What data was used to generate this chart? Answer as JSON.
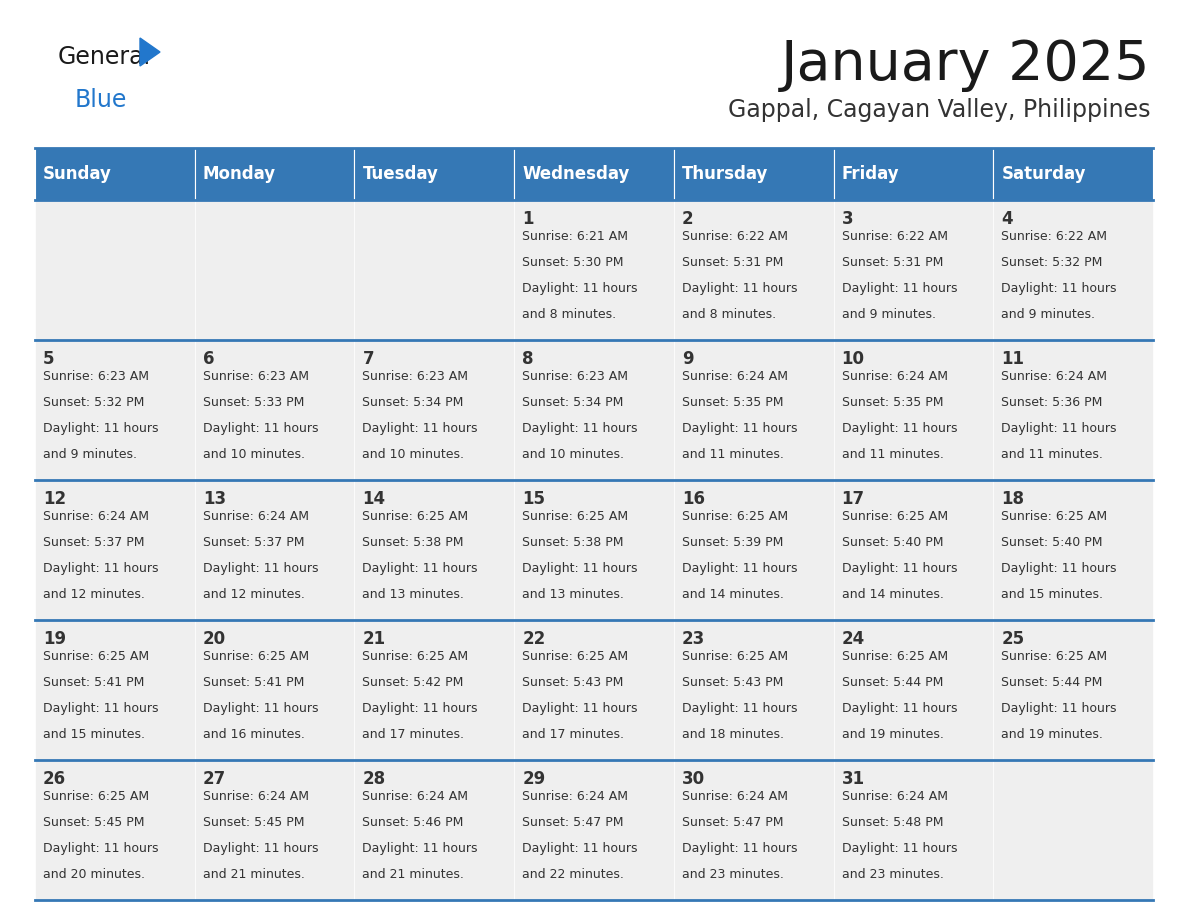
{
  "title": "January 2025",
  "subtitle": "Gappal, Cagayan Valley, Philippines",
  "days_of_week": [
    "Sunday",
    "Monday",
    "Tuesday",
    "Wednesday",
    "Thursday",
    "Friday",
    "Saturday"
  ],
  "header_bg": "#3578b5",
  "header_text": "#ffffff",
  "cell_bg_light": "#efefef",
  "divider_color": "#3578b5",
  "text_color": "#333333",
  "title_color": "#222222",
  "logo_general_color": "#222222",
  "logo_blue_color": "#2277cc",
  "logo_triangle_color": "#2277cc",
  "calendar_data": [
    [
      {
        "day": "",
        "sunrise": "",
        "sunset": "",
        "daylight": ""
      },
      {
        "day": "",
        "sunrise": "",
        "sunset": "",
        "daylight": ""
      },
      {
        "day": "",
        "sunrise": "",
        "sunset": "",
        "daylight": ""
      },
      {
        "day": "1",
        "sunrise": "6:21 AM",
        "sunset": "5:30 PM",
        "daylight": "11 hours and 8 minutes."
      },
      {
        "day": "2",
        "sunrise": "6:22 AM",
        "sunset": "5:31 PM",
        "daylight": "11 hours and 8 minutes."
      },
      {
        "day": "3",
        "sunrise": "6:22 AM",
        "sunset": "5:31 PM",
        "daylight": "11 hours and 9 minutes."
      },
      {
        "day": "4",
        "sunrise": "6:22 AM",
        "sunset": "5:32 PM",
        "daylight": "11 hours and 9 minutes."
      }
    ],
    [
      {
        "day": "5",
        "sunrise": "6:23 AM",
        "sunset": "5:32 PM",
        "daylight": "11 hours and 9 minutes."
      },
      {
        "day": "6",
        "sunrise": "6:23 AM",
        "sunset": "5:33 PM",
        "daylight": "11 hours and 10 minutes."
      },
      {
        "day": "7",
        "sunrise": "6:23 AM",
        "sunset": "5:34 PM",
        "daylight": "11 hours and 10 minutes."
      },
      {
        "day": "8",
        "sunrise": "6:23 AM",
        "sunset": "5:34 PM",
        "daylight": "11 hours and 10 minutes."
      },
      {
        "day": "9",
        "sunrise": "6:24 AM",
        "sunset": "5:35 PM",
        "daylight": "11 hours and 11 minutes."
      },
      {
        "day": "10",
        "sunrise": "6:24 AM",
        "sunset": "5:35 PM",
        "daylight": "11 hours and 11 minutes."
      },
      {
        "day": "11",
        "sunrise": "6:24 AM",
        "sunset": "5:36 PM",
        "daylight": "11 hours and 11 minutes."
      }
    ],
    [
      {
        "day": "12",
        "sunrise": "6:24 AM",
        "sunset": "5:37 PM",
        "daylight": "11 hours and 12 minutes."
      },
      {
        "day": "13",
        "sunrise": "6:24 AM",
        "sunset": "5:37 PM",
        "daylight": "11 hours and 12 minutes."
      },
      {
        "day": "14",
        "sunrise": "6:25 AM",
        "sunset": "5:38 PM",
        "daylight": "11 hours and 13 minutes."
      },
      {
        "day": "15",
        "sunrise": "6:25 AM",
        "sunset": "5:38 PM",
        "daylight": "11 hours and 13 minutes."
      },
      {
        "day": "16",
        "sunrise": "6:25 AM",
        "sunset": "5:39 PM",
        "daylight": "11 hours and 14 minutes."
      },
      {
        "day": "17",
        "sunrise": "6:25 AM",
        "sunset": "5:40 PM",
        "daylight": "11 hours and 14 minutes."
      },
      {
        "day": "18",
        "sunrise": "6:25 AM",
        "sunset": "5:40 PM",
        "daylight": "11 hours and 15 minutes."
      }
    ],
    [
      {
        "day": "19",
        "sunrise": "6:25 AM",
        "sunset": "5:41 PM",
        "daylight": "11 hours and 15 minutes."
      },
      {
        "day": "20",
        "sunrise": "6:25 AM",
        "sunset": "5:41 PM",
        "daylight": "11 hours and 16 minutes."
      },
      {
        "day": "21",
        "sunrise": "6:25 AM",
        "sunset": "5:42 PM",
        "daylight": "11 hours and 17 minutes."
      },
      {
        "day": "22",
        "sunrise": "6:25 AM",
        "sunset": "5:43 PM",
        "daylight": "11 hours and 17 minutes."
      },
      {
        "day": "23",
        "sunrise": "6:25 AM",
        "sunset": "5:43 PM",
        "daylight": "11 hours and 18 minutes."
      },
      {
        "day": "24",
        "sunrise": "6:25 AM",
        "sunset": "5:44 PM",
        "daylight": "11 hours and 19 minutes."
      },
      {
        "day": "25",
        "sunrise": "6:25 AM",
        "sunset": "5:44 PM",
        "daylight": "11 hours and 19 minutes."
      }
    ],
    [
      {
        "day": "26",
        "sunrise": "6:25 AM",
        "sunset": "5:45 PM",
        "daylight": "11 hours and 20 minutes."
      },
      {
        "day": "27",
        "sunrise": "6:24 AM",
        "sunset": "5:45 PM",
        "daylight": "11 hours and 21 minutes."
      },
      {
        "day": "28",
        "sunrise": "6:24 AM",
        "sunset": "5:46 PM",
        "daylight": "11 hours and 21 minutes."
      },
      {
        "day": "29",
        "sunrise": "6:24 AM",
        "sunset": "5:47 PM",
        "daylight": "11 hours and 22 minutes."
      },
      {
        "day": "30",
        "sunrise": "6:24 AM",
        "sunset": "5:47 PM",
        "daylight": "11 hours and 23 minutes."
      },
      {
        "day": "31",
        "sunrise": "6:24 AM",
        "sunset": "5:48 PM",
        "daylight": "11 hours and 23 minutes."
      },
      {
        "day": "",
        "sunrise": "",
        "sunset": "",
        "daylight": ""
      }
    ]
  ]
}
